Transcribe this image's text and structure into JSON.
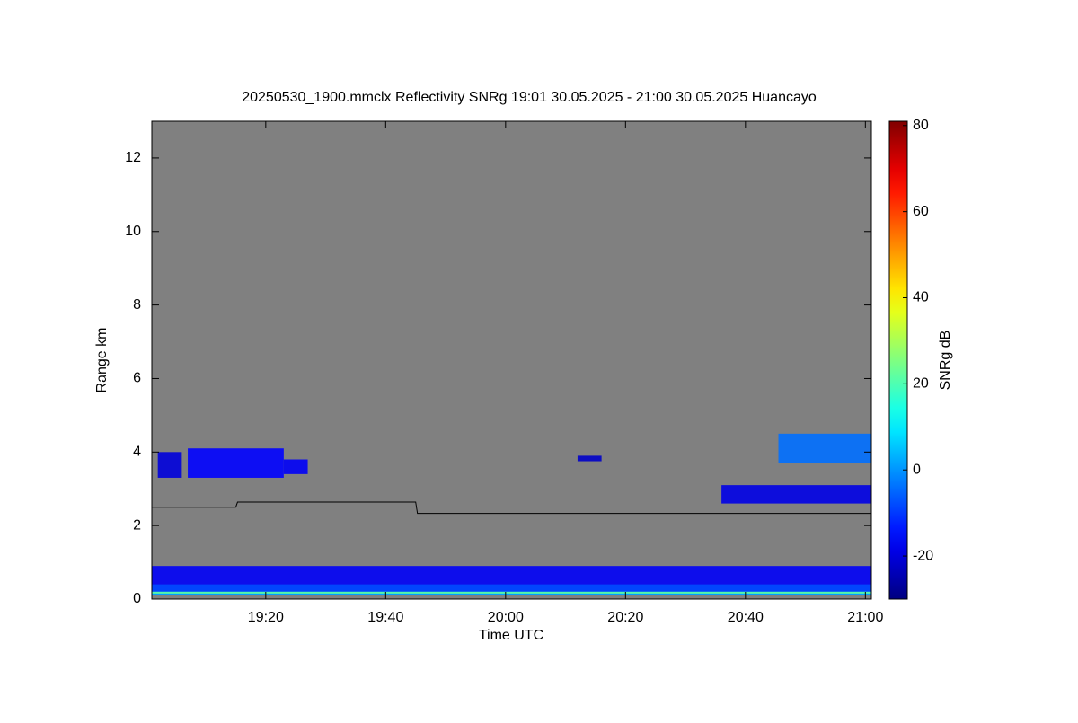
{
  "chart_data": {
    "type": "heatmap",
    "title": "20250530_1900.mmclx Reflectivity SNRg   19:01 30.05.2025 - 21:00 30.05.2025 Huancayo",
    "x_label": "Time UTC",
    "y_label": "Range km",
    "colorbar_label": "SNRg dB",
    "colormap": "jet",
    "background": "#808080",
    "xlim": [
      1141,
      1261
    ],
    "xticks": [
      {
        "value": 1160,
        "label": "19:20"
      },
      {
        "value": 1180,
        "label": "19:40"
      },
      {
        "value": 1200,
        "label": "20:00"
      },
      {
        "value": 1220,
        "label": "20:20"
      },
      {
        "value": 1240,
        "label": "20:40"
      },
      {
        "value": 1260,
        "label": "21:00"
      }
    ],
    "ylim": [
      0,
      13
    ],
    "yticks": [
      0,
      2,
      4,
      6,
      8,
      10,
      12
    ],
    "clim": [
      -30,
      81
    ],
    "cticks": [
      -20,
      0,
      20,
      40,
      60,
      80
    ],
    "echoes": [
      {
        "t": [
          1141,
          1261
        ],
        "h": [
          0.1,
          0.9
        ],
        "snr": -17
      },
      {
        "t": [
          1141,
          1261
        ],
        "h": [
          0.1,
          0.4
        ],
        "snr": -8
      },
      {
        "t": [
          1141,
          1261
        ],
        "h": [
          0.1,
          0.2
        ],
        "snr": 2
      },
      {
        "t": [
          1141,
          1261
        ],
        "h": [
          0.15,
          0.2
        ],
        "snr": 22
      },
      {
        "t": [
          1142,
          1146
        ],
        "h": [
          3.3,
          4.0
        ],
        "snr": -20
      },
      {
        "t": [
          1147,
          1163
        ],
        "h": [
          3.3,
          4.1
        ],
        "snr": -16
      },
      {
        "t": [
          1163,
          1167
        ],
        "h": [
          3.4,
          3.8
        ],
        "snr": -17
      },
      {
        "t": [
          1212,
          1216
        ],
        "h": [
          3.75,
          3.9
        ],
        "snr": -22
      },
      {
        "t": [
          1236,
          1261
        ],
        "h": [
          2.6,
          3.1
        ],
        "snr": -19
      },
      {
        "t": [
          1245.5,
          1261
        ],
        "h": [
          3.7,
          4.5
        ],
        "snr": -4
      }
    ],
    "threshold_line": {
      "color": "#000000",
      "x": [
        1141,
        1155,
        1155.3,
        1185,
        1185.3,
        1261
      ],
      "y": [
        2.5,
        2.5,
        2.64,
        2.64,
        2.33,
        2.33
      ]
    }
  }
}
